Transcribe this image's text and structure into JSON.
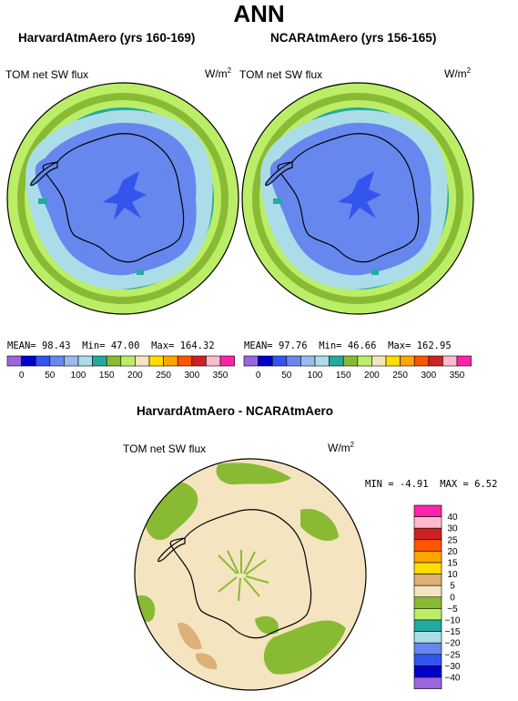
{
  "title": "ANN",
  "panels": [
    {
      "id": "harvard",
      "title": "HarvardAtmAero (yrs 160-169)",
      "left_label": "TOM net SW flux",
      "units_base": "W/m",
      "units_exp": "2",
      "stats": {
        "mean_label": "MEAN=",
        "mean": "98.43",
        "min_label": "Min=",
        "min": "47.00",
        "max_label": "Max=",
        "max": "164.32"
      }
    },
    {
      "id": "ncar",
      "title": "NCARAtmAero (yrs 156-165)",
      "left_label": "TOM net SW flux",
      "units_base": "W/m",
      "units_exp": "2",
      "stats": {
        "mean_label": "MEAN=",
        "mean": "97.76",
        "min_label": "Min=",
        "min": "46.66",
        "max_label": "Max=",
        "max": "162.95"
      }
    }
  ],
  "colorbar_top": {
    "colors": [
      "#9966dd",
      "#0000cc",
      "#3355ee",
      "#6688ee",
      "#99bbee",
      "#aadde8",
      "#22aaa0",
      "#88bb33",
      "#bbee66",
      "#f5e4c0",
      "#ffdd00",
      "#ffa500",
      "#ff5500",
      "#cc2222",
      "#ffbbcc",
      "#ff22aa"
    ],
    "tick_labels": [
      "0",
      "50",
      "100",
      "150",
      "200",
      "250",
      "300",
      "350"
    ]
  },
  "diff": {
    "title": "HarvardAtmAero - NCARAtmAero",
    "left_label": "TOM net SW flux",
    "units_base": "W/m",
    "units_exp": "2",
    "min_label": "MIN =",
    "min": "-4.91",
    "max_label": "MAX =",
    "max": "6.52"
  },
  "colorbar_diff": {
    "colors": [
      "#ff22aa",
      "#ffbbcc",
      "#cc2222",
      "#ff5500",
      "#ffa500",
      "#ffdd00",
      "#ddb077",
      "#f5e4c0",
      "#88bb33",
      "#bbee66",
      "#22aaa0",
      "#aadde8",
      "#6688ee",
      "#3355ee",
      "#0000cc",
      "#9966dd"
    ],
    "tick_labels": [
      "40",
      "30",
      "25",
      "20",
      "15",
      "10",
      "5",
      "0",
      "−5",
      "−10",
      "−15",
      "−20",
      "−25",
      "−30",
      "−40"
    ]
  }
}
